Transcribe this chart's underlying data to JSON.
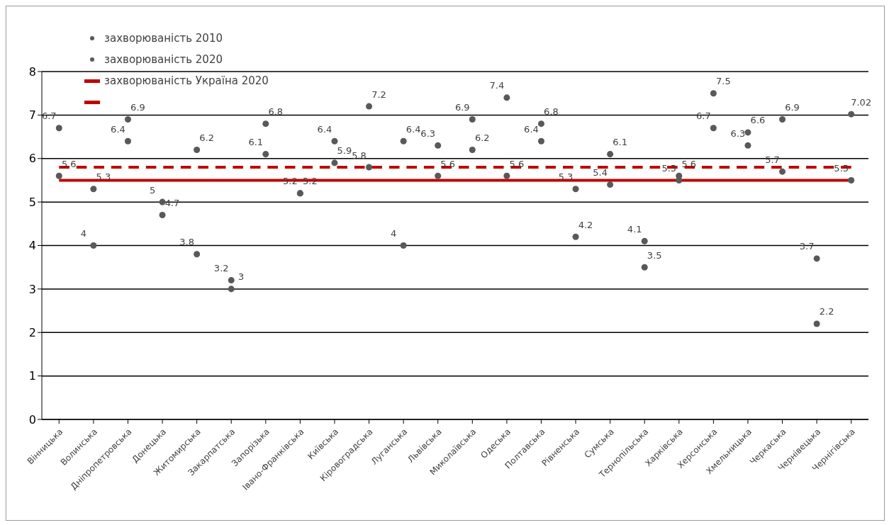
{
  "chart_data": {
    "type": "scatter",
    "categories": [
      "Вінницька",
      "Волинська",
      "Дніпропетровська",
      "Донецька",
      "Житомирська",
      "Закарпатська",
      "Запорізька",
      "Івано-Франківська",
      "Київська",
      "Кіровоградська",
      "Луганська",
      "Львівська",
      "Миколаївська",
      "Одеська",
      "Полтавська",
      "Рівненська",
      "Сумська",
      "Тернопільська",
      "Харківська",
      "Херсонська",
      "Хмельницька",
      "Черкаська",
      "Чернівецька",
      "Чернігівська"
    ],
    "series": [
      {
        "name": "захворюваність 2010",
        "marker": "circle",
        "color": "#595959",
        "values": [
          6.7,
          4,
          6.4,
          5,
          3.8,
          3.2,
          6.1,
          5.2,
          6.4,
          5.8,
          4,
          6.3,
          6.9,
          7.4,
          6.4,
          5.3,
          5.4,
          4.1,
          5.5,
          6.7,
          6.3,
          5.7,
          3.7,
          5.5
        ],
        "value_labels": [
          "6.7",
          "4",
          "6.4",
          "5",
          "3.8",
          "3.2",
          "6.1",
          "5.2",
          "6.4",
          "5.8",
          "4",
          "6.3",
          "6.9",
          "7.4",
          "6.4",
          "5.3",
          "5.4",
          "4.1",
          "5.5",
          "6.7",
          "6.3",
          "5.7",
          "3.7",
          "5.5"
        ]
      },
      {
        "name": "захворюваність 2020",
        "marker": "circle",
        "color": "#595959",
        "values": [
          5.6,
          5.3,
          6.9,
          4.7,
          6.2,
          3,
          6.8,
          5.2,
          5.9,
          7.2,
          6.4,
          5.6,
          6.2,
          5.6,
          6.8,
          4.2,
          6.1,
          3.5,
          5.6,
          7.5,
          6.6,
          6.9,
          2.2,
          7.02
        ],
        "value_labels": [
          "5.6",
          "5.3",
          "6.9",
          "4.7",
          "6.2",
          "3",
          "6.8",
          "5.2",
          "5.9",
          "7.2",
          "6.4",
          "5.6",
          "6.2",
          "5.6",
          "6.8",
          "4.2",
          "6.1",
          "3.5",
          "5.6",
          "7.5",
          "6.6",
          "6.9",
          "2.2",
          "7.02"
        ]
      },
      {
        "name": "захворюваність Україна 2020",
        "type": "line",
        "line_style": "solid",
        "color": "#c00000",
        "values": [
          5.5,
          5.5,
          5.5,
          5.5,
          5.5,
          5.5,
          5.5,
          5.5,
          5.5,
          5.5,
          5.5,
          5.5,
          5.5,
          5.5,
          5.5,
          5.5,
          5.5,
          5.5,
          5.5,
          5.5,
          5.5,
          5.5,
          5.5,
          5.5
        ]
      },
      {
        "type": "line",
        "line_style": "dashed",
        "color": "#c00000",
        "values": [
          5.8,
          5.8,
          5.8,
          5.8,
          5.8,
          5.8,
          5.8,
          5.8,
          5.8,
          5.8,
          5.8,
          5.8,
          5.8,
          5.8,
          5.8,
          5.8,
          5.8,
          5.8,
          5.8,
          5.8,
          5.8,
          5.8,
          5.8,
          5.8
        ]
      }
    ],
    "ylim": [
      0,
      8
    ],
    "yticks": [
      0,
      1,
      2,
      3,
      4,
      5,
      6,
      7,
      8
    ],
    "grid": "y",
    "legend": "top left"
  }
}
